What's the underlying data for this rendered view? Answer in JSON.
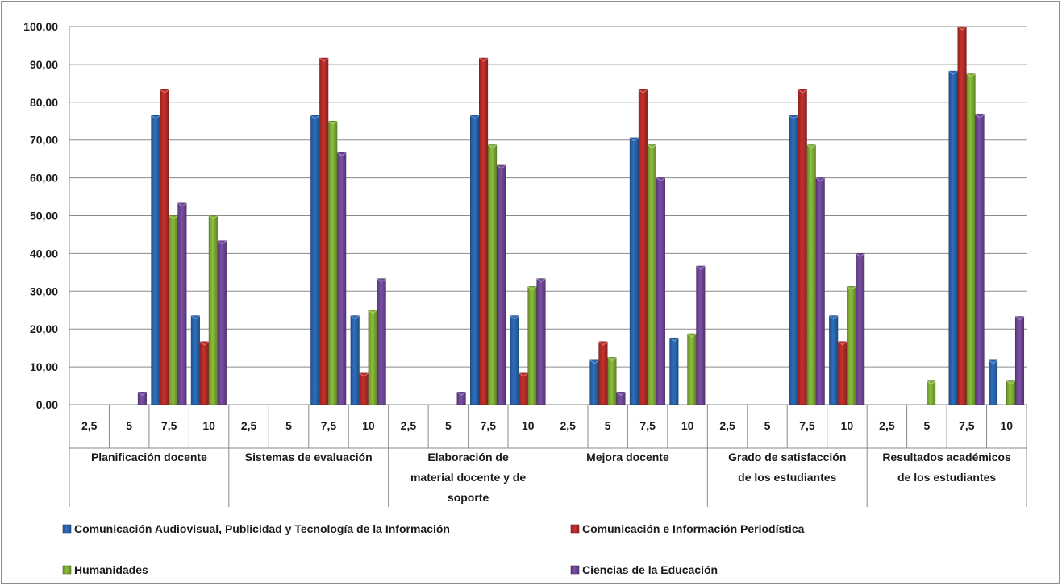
{
  "chart_data": {
    "type": "bar",
    "title": "",
    "xlabel": "",
    "ylabel": "",
    "ylim": [
      0,
      100
    ],
    "ytick_step": 10,
    "ytick_labels": [
      "0,00",
      "10,00",
      "20,00",
      "30,00",
      "40,00",
      "50,00",
      "60,00",
      "70,00",
      "80,00",
      "90,00",
      "100,00"
    ],
    "grid": true,
    "legend_position": "bottom",
    "groups": [
      {
        "label_lines": [
          "Planificación docente"
        ],
        "subcategories": [
          "2,5",
          "5",
          "7,5",
          "10"
        ]
      },
      {
        "label_lines": [
          "Sistemas de evaluación"
        ],
        "subcategories": [
          "2,5",
          "5",
          "7,5",
          "10"
        ]
      },
      {
        "label_lines": [
          "Elaboración de",
          "material docente y de",
          "soporte"
        ],
        "subcategories": [
          "2,5",
          "5",
          "7,5",
          "10"
        ]
      },
      {
        "label_lines": [
          "Mejora docente"
        ],
        "subcategories": [
          "2,5",
          "5",
          "7,5",
          "10"
        ]
      },
      {
        "label_lines": [
          "Grado de satisfacción",
          "de los estudiantes"
        ],
        "subcategories": [
          "2,5",
          "5",
          "7,5",
          "10"
        ]
      },
      {
        "label_lines": [
          "Resultados académicos",
          "de los estudiantes"
        ],
        "subcategories": [
          "2,5",
          "5",
          "7,5",
          "10"
        ]
      }
    ],
    "series": [
      {
        "name": "Comunicación Audiovisual, Publicidad y Tecnología de la Información",
        "color": "#2e6fbf",
        "values": [
          0,
          0,
          76.47,
          23.53,
          0,
          0,
          76.47,
          23.53,
          0,
          0,
          76.47,
          23.53,
          0,
          11.76,
          70.59,
          17.65,
          0,
          0,
          76.47,
          23.53,
          0,
          0,
          88.24,
          11.76
        ]
      },
      {
        "name": "Comunicación e Información Periodística",
        "color": "#c8302c",
        "values": [
          0,
          0,
          83.33,
          16.67,
          0,
          0,
          91.67,
          8.33,
          0,
          0,
          91.67,
          8.33,
          0,
          16.67,
          83.33,
          0,
          0,
          0,
          83.33,
          16.67,
          0,
          0,
          100,
          0
        ]
      },
      {
        "name": "Humanidades",
        "color": "#8cbf3a",
        "values": [
          0,
          0,
          50,
          50,
          0,
          0,
          75,
          25,
          0,
          0,
          68.75,
          31.25,
          0,
          12.5,
          68.75,
          18.75,
          0,
          0,
          68.75,
          31.25,
          0,
          6.25,
          87.5,
          6.25
        ]
      },
      {
        "name": "Ciencias de la Educación",
        "color": "#7b4fa6",
        "values": [
          0,
          3.33,
          53.33,
          43.33,
          0,
          0,
          66.67,
          33.33,
          0,
          3.33,
          63.33,
          33.33,
          0,
          3.33,
          60,
          36.67,
          0,
          0,
          60,
          40,
          0,
          0,
          76.67,
          23.33
        ]
      }
    ]
  }
}
